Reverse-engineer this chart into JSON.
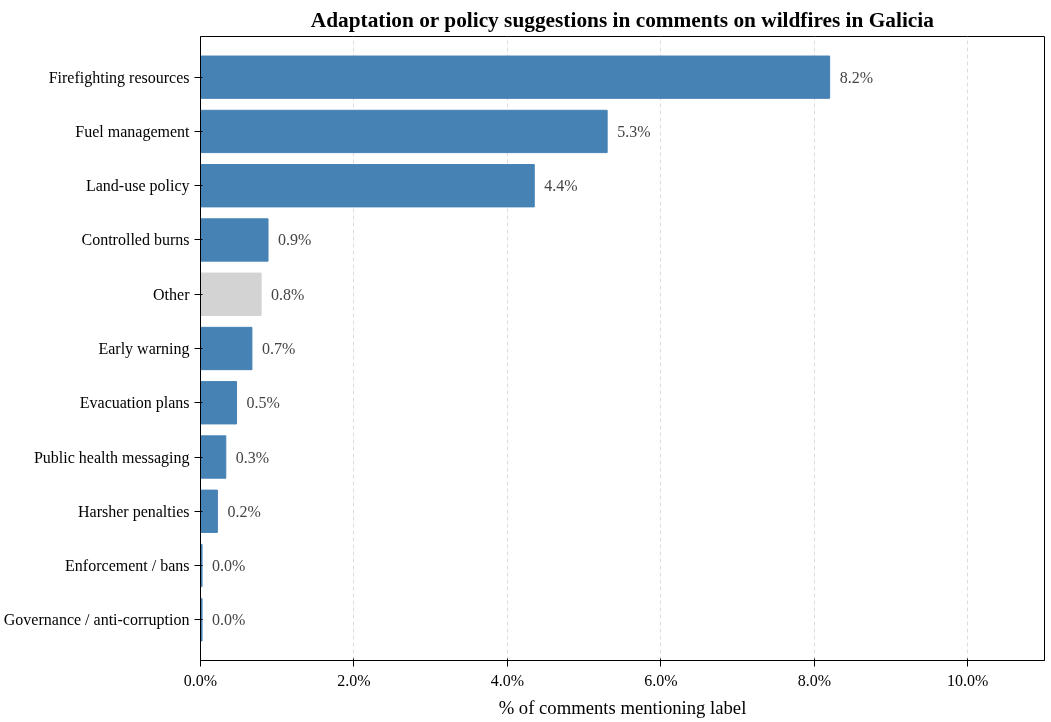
{
  "chart_data": {
    "type": "bar",
    "orientation": "horizontal",
    "title": "Adaptation or policy suggestions in comments on wildfires in Galicia",
    "xlabel": "% of comments mentioning label",
    "categories": [
      "Firefighting resources",
      "Fuel management",
      "Land-use policy",
      "Controlled burns",
      "Other",
      "Early warning",
      "Evacuation plans",
      "Public health messaging",
      "Harsher penalties",
      "Enforcement / bans",
      "Governance / anti-corruption"
    ],
    "values": [
      8.2,
      5.3,
      4.35,
      0.88,
      0.79,
      0.67,
      0.47,
      0.33,
      0.22,
      0.02,
      0.02
    ],
    "colors": [
      "#4682b4",
      "#4682b4",
      "#4682b4",
      "#4682b4",
      "#d3d3d3",
      "#4682b4",
      "#4682b4",
      "#4682b4",
      "#4682b4",
      "#4682b4",
      "#4682b4"
    ],
    "value_labels": [
      "8.2%",
      "5.3%",
      "4.4%",
      "0.9%",
      "0.8%",
      "0.7%",
      "0.5%",
      "0.3%",
      "0.2%",
      "0.0%",
      "0.0%"
    ],
    "xlim": [
      0,
      11
    ],
    "xticks": [
      {
        "value": 0,
        "label": "0.0%"
      },
      {
        "value": 2,
        "label": "2.0%"
      },
      {
        "value": 4,
        "label": "4.0%"
      },
      {
        "value": 6,
        "label": "6.0%"
      },
      {
        "value": 8,
        "label": "8.0%"
      },
      {
        "value": 10,
        "label": "10.0%"
      }
    ],
    "grid": "x"
  }
}
